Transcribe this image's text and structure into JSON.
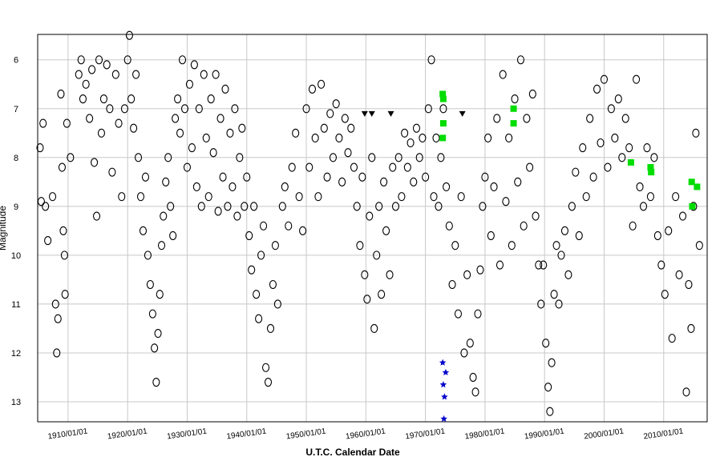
{
  "chart_data": {
    "type": "scatter",
    "x_label": "U.T.C. Calendar Date",
    "y_label": "Magnitude",
    "xlim": [
      1904.9,
      2017.3
    ],
    "ylim": [
      5.48,
      13.41
    ],
    "y_inverted": true,
    "grid": true,
    "xticks": [
      {
        "value": 1910,
        "label": "1910/01/01"
      },
      {
        "value": 1920,
        "label": "1920/01/01"
      },
      {
        "value": 1930,
        "label": "1930/01/01"
      },
      {
        "value": 1940,
        "label": "1940/01/01"
      },
      {
        "value": 1950,
        "label": "1950/01/01"
      },
      {
        "value": 1960,
        "label": "1960/01/01"
      },
      {
        "value": 1970,
        "label": "1970/01/01"
      },
      {
        "value": 1980,
        "label": "1980/01/01"
      },
      {
        "value": 1990,
        "label": "1990/01/01"
      },
      {
        "value": 2000,
        "label": "2000/01/01"
      },
      {
        "value": 2010,
        "label": "2010/01/01"
      }
    ],
    "yticks": [
      6,
      7,
      8,
      9,
      10,
      11,
      12,
      13
    ],
    "series": [
      {
        "color": "#000000",
        "marker": "circle",
        "x": [
          1905.3,
          1905.5,
          1905.8,
          1906.2,
          1906.6,
          1907.4,
          1907.9,
          1908.1,
          1908.3,
          1908.8,
          1909.0,
          1909.2,
          1909.4,
          1909.5,
          1909.8,
          1910.4,
          1911.8,
          1912.2,
          1912.5,
          1913.0,
          1913.6,
          1914.0,
          1914.4,
          1914.8,
          1915.2,
          1915.6,
          1916.0,
          1916.5,
          1917.0,
          1917.4,
          1918.0,
          1918.5,
          1919.0,
          1919.5,
          1920.0,
          1920.3,
          1920.6,
          1921.0,
          1921.4,
          1921.8,
          1922.2,
          1922.6,
          1923.0,
          1923.4,
          1923.8,
          1924.2,
          1924.5,
          1924.8,
          1925.1,
          1925.4,
          1925.7,
          1926.0,
          1926.4,
          1926.8,
          1927.2,
          1927.6,
          1928.0,
          1928.4,
          1928.8,
          1929.2,
          1929.6,
          1930.0,
          1930.4,
          1930.8,
          1931.2,
          1931.6,
          1932.0,
          1932.4,
          1932.8,
          1933.2,
          1933.6,
          1934.0,
          1934.4,
          1934.8,
          1935.2,
          1935.6,
          1936.0,
          1936.4,
          1936.8,
          1937.2,
          1937.6,
          1938.0,
          1938.4,
          1938.8,
          1939.2,
          1939.6,
          1940.0,
          1940.4,
          1940.8,
          1941.2,
          1941.6,
          1942.0,
          1942.4,
          1942.8,
          1943.2,
          1943.6,
          1944.0,
          1944.4,
          1944.8,
          1945.2,
          1946.0,
          1946.4,
          1947.0,
          1947.6,
          1948.2,
          1948.8,
          1949.4,
          1950.0,
          1950.5,
          1951.0,
          1951.5,
          1952.0,
          1952.5,
          1953.0,
          1953.5,
          1954.0,
          1954.5,
          1955.0,
          1955.5,
          1956.0,
          1956.5,
          1957.0,
          1957.5,
          1958.0,
          1958.5,
          1959.0,
          1959.4,
          1959.8,
          1960.2,
          1960.6,
          1961.0,
          1961.4,
          1961.8,
          1962.2,
          1962.6,
          1963.0,
          1963.4,
          1964.0,
          1964.5,
          1965.0,
          1965.5,
          1966.0,
          1966.5,
          1967.0,
          1967.5,
          1968.0,
          1968.5,
          1969.0,
          1969.5,
          1970.0,
          1970.5,
          1971.0,
          1971.4,
          1971.8,
          1972.2,
          1972.6,
          1973.0,
          1973.5,
          1974.0,
          1974.5,
          1975.0,
          1975.5,
          1976.0,
          1976.5,
          1977.0,
          1977.5,
          1978.0,
          1978.4,
          1978.8,
          1979.2,
          1979.6,
          1980.0,
          1980.5,
          1981.0,
          1981.5,
          1982.0,
          1982.5,
          1983.0,
          1983.5,
          1984.0,
          1984.5,
          1985.0,
          1985.5,
          1986.0,
          1986.5,
          1987.0,
          1987.5,
          1988.0,
          1988.5,
          1989.0,
          1989.4,
          1989.8,
          1990.2,
          1990.6,
          1990.9,
          1991.2,
          1991.6,
          1992.0,
          1992.4,
          1992.8,
          1993.4,
          1994.0,
          1994.6,
          1995.2,
          1995.8,
          1996.4,
          1997.0,
          1997.6,
          1998.2,
          1998.8,
          1999.4,
          2000.0,
          2000.6,
          2001.2,
          2001.8,
          2002.4,
          2003.0,
          2003.6,
          2004.2,
          2004.8,
          2005.4,
          2006.0,
          2006.6,
          2007.2,
          2007.8,
          2008.4,
          2009.0,
          2009.6,
          2010.2,
          2010.8,
          2011.4,
          2012.0,
          2012.6,
          2013.2,
          2013.8,
          2014.2,
          2014.6,
          2015.0,
          2015.4,
          2016.0
        ],
        "values": [
          7.8,
          8.9,
          7.3,
          9.0,
          9.7,
          8.8,
          11.0,
          12.0,
          11.3,
          6.7,
          8.2,
          9.5,
          10.0,
          10.8,
          7.3,
          8.0,
          6.3,
          6.0,
          6.8,
          6.5,
          7.2,
          6.2,
          8.1,
          9.2,
          6.0,
          7.5,
          6.8,
          6.1,
          7.0,
          8.3,
          6.3,
          7.3,
          8.8,
          7.0,
          6.0,
          5.5,
          6.8,
          7.4,
          6.3,
          8.0,
          8.8,
          9.5,
          8.4,
          10.0,
          10.6,
          11.2,
          11.9,
          12.6,
          11.6,
          10.8,
          9.8,
          9.2,
          8.5,
          8.0,
          9.0,
          9.6,
          7.2,
          6.8,
          7.5,
          6.0,
          7.0,
          8.2,
          6.5,
          7.8,
          6.1,
          8.6,
          7.0,
          9.0,
          6.3,
          7.6,
          8.8,
          6.8,
          7.9,
          6.3,
          9.1,
          7.2,
          8.4,
          6.6,
          9.0,
          7.5,
          8.6,
          7.0,
          9.2,
          8.0,
          7.4,
          9.0,
          8.4,
          9.6,
          10.3,
          9.0,
          10.8,
          11.3,
          10.0,
          9.4,
          12.3,
          12.6,
          11.5,
          10.6,
          9.8,
          11.0,
          9.0,
          8.6,
          9.4,
          8.2,
          7.5,
          8.8,
          9.5,
          7.0,
          8.2,
          6.6,
          7.6,
          8.8,
          6.5,
          7.4,
          8.4,
          7.1,
          8.0,
          6.9,
          7.6,
          8.5,
          7.2,
          7.9,
          7.4,
          8.2,
          9.0,
          9.8,
          8.4,
          10.4,
          10.9,
          9.2,
          8.0,
          11.5,
          10.0,
          9.0,
          10.8,
          8.5,
          9.5,
          10.4,
          8.2,
          9.0,
          8.0,
          8.8,
          7.5,
          8.2,
          7.7,
          8.5,
          7.4,
          8.0,
          7.6,
          8.4,
          7.0,
          6.0,
          8.8,
          7.6,
          9.0,
          8.0,
          7.0,
          8.6,
          9.4,
          10.6,
          9.8,
          11.2,
          8.8,
          12.0,
          10.4,
          11.8,
          12.5,
          12.8,
          11.2,
          10.3,
          9.0,
          8.4,
          7.6,
          9.6,
          8.6,
          7.2,
          10.2,
          6.3,
          8.9,
          7.6,
          9.8,
          6.8,
          8.5,
          6.0,
          9.4,
          7.2,
          8.2,
          6.7,
          9.2,
          10.2,
          11.0,
          10.2,
          11.8,
          12.7,
          13.2,
          12.2,
          10.8,
          9.8,
          11.0,
          10.0,
          9.5,
          10.4,
          9.0,
          8.3,
          9.6,
          7.8,
          8.8,
          7.2,
          8.4,
          6.6,
          7.7,
          6.4,
          8.2,
          7.0,
          7.6,
          6.8,
          8.0,
          7.2,
          7.8,
          9.4,
          6.4,
          8.6,
          9.0,
          7.8,
          8.8,
          8.0,
          9.6,
          10.2,
          10.8,
          9.5,
          11.7,
          8.8,
          10.4,
          9.2,
          12.8,
          10.6,
          11.5,
          9.0,
          7.5,
          9.8
        ]
      },
      {
        "color": "#00dd00",
        "marker": "square",
        "x": [
          1972.9,
          1973.0,
          1973.0,
          1972.9,
          1984.8,
          1984.8,
          2004.5,
          2007.8,
          2007.9,
          2014.7,
          2015.6,
          2014.8
        ],
        "values": [
          6.7,
          6.8,
          7.3,
          7.6,
          7.0,
          7.3,
          8.1,
          8.2,
          8.3,
          8.5,
          8.6,
          9.0
        ]
      },
      {
        "color": "#0000cc",
        "marker": "star",
        "x": [
          1972.9,
          1973.4,
          1973.0,
          1973.2,
          1973.1
        ],
        "values": [
          12.2,
          12.4,
          12.65,
          12.9,
          13.35
        ]
      },
      {
        "color": "#000000",
        "marker": "triangle",
        "x": [
          1959.8,
          1961.0,
          1964.2,
          1976.2
        ],
        "values": [
          7.1,
          7.1,
          7.1,
          7.1
        ]
      }
    ]
  }
}
